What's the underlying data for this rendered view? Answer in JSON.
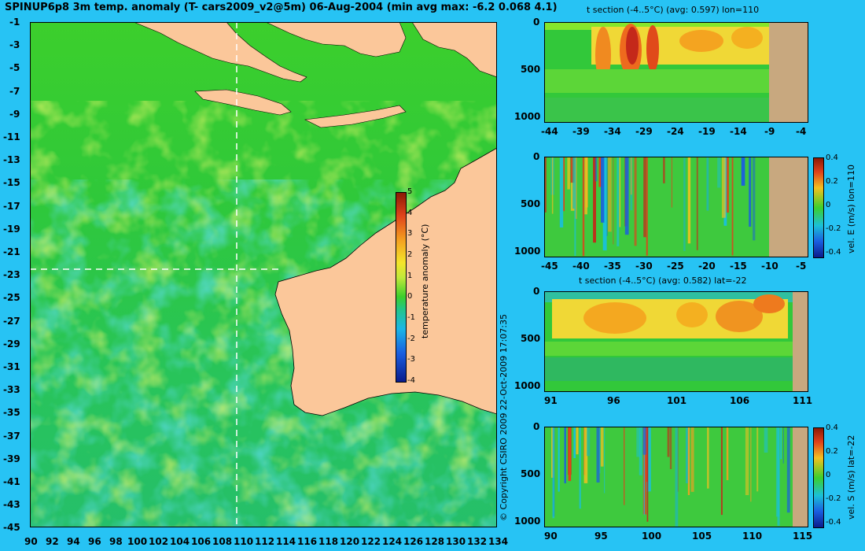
{
  "title": "SPINUP6p8 3m temp. anomaly (T- cars2009_v2@5m) 06-Aug-2004 (min avg max: -6.2 0.068 4.1)",
  "copyright": "© Copyright CSIRO 2009   22-Oct-2009 17:07:35",
  "colors": {
    "background": "#27c3f4",
    "land": "#fbc79a",
    "section_land": "#c8a87f",
    "ocean_green": "#2fc83a"
  },
  "map": {
    "x_ticks": [
      "90",
      "92",
      "94",
      "96",
      "98",
      "100",
      "102",
      "104",
      "106",
      "108",
      "110",
      "112",
      "114",
      "116",
      "118",
      "120",
      "122",
      "124",
      "126",
      "128",
      "130",
      "132",
      "134"
    ],
    "y_ticks": [
      "-1",
      "-3",
      "-5",
      "-7",
      "-9",
      "-11",
      "-13",
      "-15",
      "-17",
      "-19",
      "-21",
      "-23",
      "-25",
      "-27",
      "-29",
      "-31",
      "-33",
      "-35",
      "-37",
      "-39",
      "-41",
      "-43",
      "-45"
    ],
    "colorbar": {
      "label": "temperature anomaly (°C)",
      "ticks": [
        "5",
        "4",
        "3",
        "2",
        "1",
        "0",
        "-1",
        "-2",
        "-3",
        "-4"
      ]
    },
    "section_lines": {
      "lon": 110,
      "lat": -22
    }
  },
  "panels": [
    {
      "id": "panel1",
      "title": "t section (-4..5°C) (avg: 0.597) lon=110",
      "x_ticks": [
        "-44",
        "-39",
        "-34",
        "-29",
        "-24",
        "-19",
        "-14",
        "-9",
        "-4"
      ],
      "y_ticks": [
        "0",
        "500",
        "1000"
      ],
      "colorbar": null
    },
    {
      "id": "panel2",
      "title": "",
      "x_ticks": [
        "-45",
        "-40",
        "-35",
        "-30",
        "-25",
        "-20",
        "-15",
        "-10",
        "-5"
      ],
      "y_ticks": [
        "0",
        "500",
        "1000"
      ],
      "colorbar": {
        "label": "vel. E (m/s) lon=110",
        "ticks": [
          "0.4",
          "0.2",
          "0",
          "-0.2",
          "-0.4"
        ]
      }
    },
    {
      "id": "panel3",
      "title": "t section (-4..5°C) (avg: 0.582) lat=-22",
      "x_ticks": [
        "91",
        "96",
        "101",
        "106",
        "111"
      ],
      "y_ticks": [
        "0",
        "500",
        "1000"
      ],
      "colorbar": null
    },
    {
      "id": "panel4",
      "title": "",
      "x_ticks": [
        "90",
        "95",
        "100",
        "105",
        "110",
        "115"
      ],
      "y_ticks": [
        "0",
        "500",
        "1000"
      ],
      "colorbar": {
        "label": "vel. S (m/s) lat=-22",
        "ticks": [
          "0.4",
          "0.2",
          "0",
          "-0.2",
          "-0.4"
        ]
      }
    }
  ]
}
